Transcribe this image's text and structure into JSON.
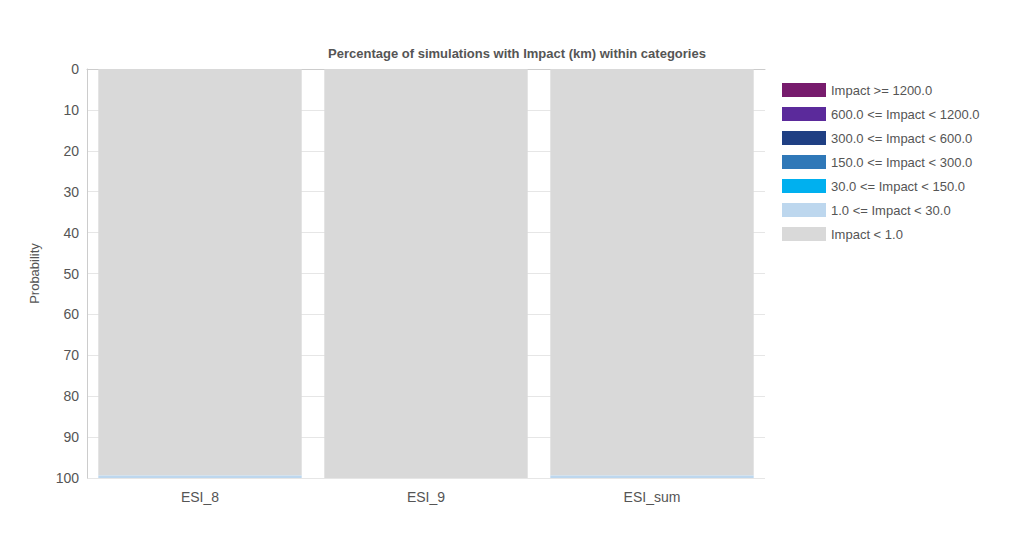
{
  "chart_data": {
    "type": "bar",
    "title": "Percentage of simulations with Impact (km) within categories",
    "y_label": "Probability",
    "categories": [
      "ESI_8",
      "ESI_9",
      "ESI_sum"
    ],
    "stacked": true,
    "grid": true,
    "legend": "right",
    "ylim": [
      0,
      100
    ],
    "yticks": [
      0,
      10,
      20,
      30,
      40,
      50,
      60,
      70,
      80,
      90,
      100
    ],
    "series": [
      {
        "name": "Impact >= 1200.0",
        "color": "#771b6d",
        "values": [
          0,
          0,
          0
        ]
      },
      {
        "name": "600.0 <= Impact < 1200.0",
        "color": "#5b2a9b",
        "values": [
          0,
          0,
          0
        ]
      },
      {
        "name": "300.0 <= Impact < 600.0",
        "color": "#1f3f83",
        "values": [
          0,
          0,
          0
        ]
      },
      {
        "name": "150.0 <= Impact < 300.0",
        "color": "#2f78b8",
        "values": [
          0,
          0,
          0
        ]
      },
      {
        "name": "30.0 <= Impact < 150.0",
        "color": "#00b0ef",
        "values": [
          0,
          0,
          0
        ]
      },
      {
        "name": "1.0 <= Impact < 30.0",
        "color": "#bdd7ee",
        "values": [
          0.6,
          0,
          0.6
        ]
      },
      {
        "name": "Impact < 1.0",
        "color": "#d9d9d9",
        "values": [
          99.4,
          100,
          99.4
        ]
      }
    ]
  }
}
